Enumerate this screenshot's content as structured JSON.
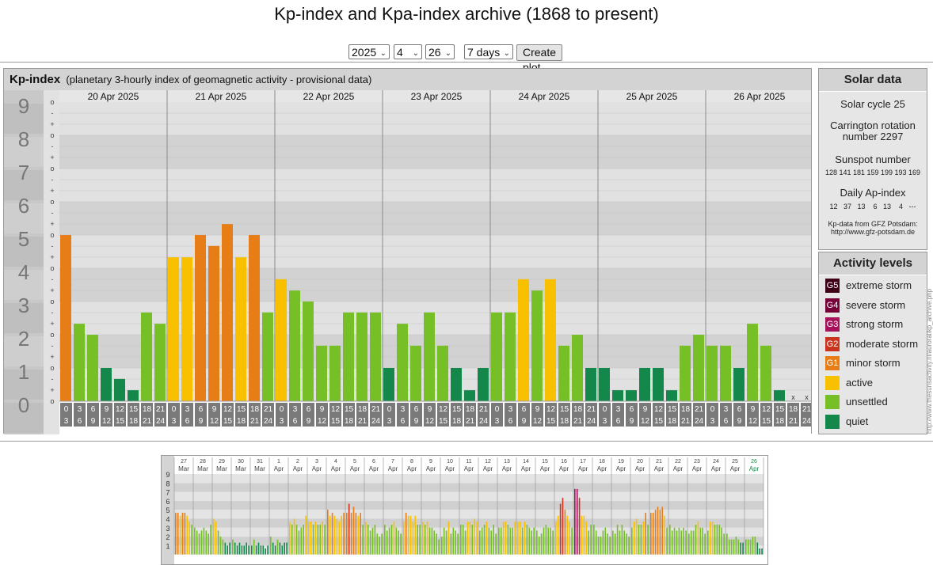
{
  "page": {
    "title": "Kp-index and Kpa-index archive (1868 to present)"
  },
  "controls": {
    "year": "2025",
    "month": "4",
    "day": "26",
    "span": "7 days",
    "button": "Create plot"
  },
  "main_panel": {
    "name": "Kp-index",
    "subtitle": "(planetary 3-hourly index of geomagnetic activity - provisional data)"
  },
  "solar_data": {
    "title": "Solar data",
    "cycle": "Solar cycle 25",
    "carrington_1": "Carrington rotation",
    "carrington_2": "number 2297",
    "sunspot_label": "Sunspot number",
    "sunspots": "128 141 181 159 199 193 169",
    "ap_label": "Daily Ap-index",
    "ap_values": "12   37   13    6   13    4   ---",
    "credit_1": "Kp-data from GFZ Potsdam:",
    "credit_2": "http://www.gfz-potsdam.de"
  },
  "activity_levels": {
    "title": "Activity levels",
    "items": [
      {
        "badge": "G5",
        "label": "extreme storm",
        "color": "#3d0016"
      },
      {
        "badge": "G4",
        "label": "severe storm",
        "color": "#770038"
      },
      {
        "badge": "G3",
        "label": "strong storm",
        "color": "#a5125c"
      },
      {
        "badge": "G2",
        "label": "moderate storm",
        "color": "#c9341f"
      },
      {
        "badge": "G1",
        "label": "minor storm",
        "color": "#e67d17"
      },
      {
        "badge": "",
        "label": "active",
        "color": "#f9c000"
      },
      {
        "badge": "",
        "label": "unsettled",
        "color": "#76bf26"
      },
      {
        "badge": "",
        "label": "quiet",
        "color": "#14884a"
      }
    ]
  },
  "vertical_text": "http://www.thesunsactivity.nl/auroral/kp_archive.php",
  "chart_data": [
    {
      "type": "bar",
      "title": "Kp-index",
      "ylim": [
        0,
        9
      ],
      "y_ticks": [
        "0",
        "1",
        "2",
        "3",
        "4",
        "5",
        "6",
        "7",
        "8",
        "9"
      ],
      "sub_ticks": [
        "o",
        "+",
        "-",
        "o",
        "+",
        "-",
        "o",
        "+",
        "-",
        "o",
        "+",
        "-",
        "o",
        "+",
        "-",
        "o",
        "+",
        "-",
        "o",
        "+",
        "-",
        "o",
        "+",
        "-",
        "o",
        "+",
        "-",
        "o"
      ],
      "days": [
        "20 Apr 2025",
        "21 Apr 2025",
        "22 Apr 2025",
        "23 Apr 2025",
        "24 Apr 2025",
        "25 Apr 2025",
        "26 Apr 2025"
      ],
      "slot_labels": [
        [
          "0",
          "3"
        ],
        [
          "3",
          "6"
        ],
        [
          "6",
          "9"
        ],
        [
          "9",
          "12"
        ],
        [
          "12",
          "15"
        ],
        [
          "15",
          "18"
        ],
        [
          "18",
          "21"
        ],
        [
          "21",
          "24"
        ]
      ],
      "values": [
        [
          5.0,
          2.33,
          2.0,
          1.0,
          0.67,
          0.33,
          2.67,
          2.33
        ],
        [
          4.33,
          4.33,
          5.0,
          4.67,
          5.33,
          4.33,
          5.0,
          2.67
        ],
        [
          3.67,
          3.33,
          3.0,
          1.67,
          1.67,
          2.67,
          2.67,
          2.67
        ],
        [
          1.0,
          2.33,
          1.67,
          2.67,
          1.67,
          1.0,
          0.33,
          1.0
        ],
        [
          2.67,
          2.67,
          3.67,
          3.33,
          3.67,
          1.67,
          2.0,
          1.0
        ],
        [
          1.0,
          0.33,
          0.33,
          1.0,
          1.0,
          0.33,
          1.67,
          2.0
        ],
        [
          1.67,
          1.67,
          1.0,
          2.33,
          1.67,
          0.33,
          null,
          null
        ]
      ],
      "missing_mark": "x",
      "colors": {
        "quiet": "#14884a",
        "unsettled": "#76bf26",
        "active": "#f9c000",
        "G1": "#e67d17",
        "G2": "#c9341f",
        "G3": "#a5125c",
        "G4": "#770038",
        "G5": "#3d0016"
      }
    },
    {
      "type": "bar",
      "title": "Kp overview",
      "ylim": [
        0,
        9
      ],
      "y_ticks": [
        "1",
        "2",
        "3",
        "4",
        "5",
        "6",
        "7",
        "8",
        "9"
      ],
      "days": [
        {
          "d": "27",
          "m": "Mar"
        },
        {
          "d": "28",
          "m": "Mar"
        },
        {
          "d": "29",
          "m": "Mar"
        },
        {
          "d": "30",
          "m": "Mar"
        },
        {
          "d": "31",
          "m": "Mar"
        },
        {
          "d": "1",
          "m": "Apr"
        },
        {
          "d": "2",
          "m": "Apr"
        },
        {
          "d": "3",
          "m": "Apr"
        },
        {
          "d": "4",
          "m": "Apr"
        },
        {
          "d": "5",
          "m": "Apr"
        },
        {
          "d": "6",
          "m": "Apr"
        },
        {
          "d": "7",
          "m": "Apr"
        },
        {
          "d": "8",
          "m": "Apr"
        },
        {
          "d": "9",
          "m": "Apr"
        },
        {
          "d": "10",
          "m": "Apr"
        },
        {
          "d": "11",
          "m": "Apr"
        },
        {
          "d": "12",
          "m": "Apr"
        },
        {
          "d": "13",
          "m": "Apr"
        },
        {
          "d": "14",
          "m": "Apr"
        },
        {
          "d": "15",
          "m": "Apr"
        },
        {
          "d": "16",
          "m": "Apr"
        },
        {
          "d": "17",
          "m": "Apr"
        },
        {
          "d": "18",
          "m": "Apr"
        },
        {
          "d": "19",
          "m": "Apr"
        },
        {
          "d": "20",
          "m": "Apr"
        },
        {
          "d": "21",
          "m": "Apr"
        },
        {
          "d": "22",
          "m": "Apr"
        },
        {
          "d": "23",
          "m": "Apr"
        },
        {
          "d": "24",
          "m": "Apr"
        },
        {
          "d": "25",
          "m": "Apr"
        },
        {
          "d": "26",
          "m": "Apr"
        }
      ],
      "values": [
        [
          4.67,
          4.67,
          4.33,
          4.67,
          4.67,
          4.33,
          3.67,
          3.33
        ],
        [
          3.0,
          2.67,
          2.33,
          2.67,
          3.0,
          2.67,
          2.33,
          3.33
        ],
        [
          4.0,
          3.67,
          2.67,
          2.0,
          1.67,
          1.33,
          1.0,
          1.33
        ],
        [
          1.67,
          1.33,
          1.0,
          1.33,
          1.0,
          1.0,
          1.33,
          1.0
        ],
        [
          1.0,
          1.67,
          1.0,
          1.33,
          1.0,
          1.0,
          0.67,
          1.0
        ],
        [
          2.0,
          1.33,
          1.0,
          1.67,
          1.33,
          1.0,
          1.33,
          1.33
        ],
        [
          3.67,
          3.33,
          4.0,
          3.33,
          2.67,
          3.0,
          3.33,
          4.33
        ],
        [
          3.67,
          3.67,
          3.33,
          3.67,
          3.33,
          3.33,
          3.67,
          3.33
        ],
        [
          5.0,
          4.33,
          4.67,
          4.33,
          4.0,
          3.67,
          4.33,
          4.67
        ],
        [
          4.67,
          5.67,
          4.67,
          5.33,
          4.67,
          4.33,
          4.67,
          3.33
        ],
        [
          3.67,
          3.33,
          2.67,
          3.0,
          3.33,
          2.33,
          2.0,
          2.33
        ],
        [
          3.33,
          2.67,
          3.0,
          3.33,
          3.67,
          3.0,
          2.67,
          2.33
        ],
        [
          3.67,
          4.67,
          4.33,
          4.33,
          3.67,
          4.33,
          3.33,
          3.33
        ],
        [
          3.67,
          3.33,
          3.67,
          3.0,
          3.0,
          2.67,
          2.33,
          1.67
        ],
        [
          2.0,
          3.0,
          2.67,
          3.67,
          2.33,
          3.0,
          2.67,
          2.33
        ],
        [
          3.33,
          3.33,
          2.67,
          3.67,
          3.67,
          3.33,
          4.0,
          3.67
        ],
        [
          2.67,
          3.0,
          3.33,
          3.67,
          3.0,
          2.67,
          3.33,
          2.33
        ],
        [
          3.0,
          3.0,
          3.67,
          3.67,
          3.33,
          3.0,
          3.0,
          3.67
        ],
        [
          3.67,
          3.67,
          3.0,
          3.67,
          3.33,
          3.0,
          2.67,
          3.0
        ],
        [
          2.67,
          2.0,
          2.33,
          3.0,
          3.33,
          3.0,
          3.0,
          2.67
        ],
        [
          3.67,
          4.33,
          5.67,
          6.33,
          5.0,
          4.33,
          3.67,
          3.0
        ],
        [
          7.33,
          7.33,
          6.33,
          4.33,
          4.33,
          3.67,
          2.67,
          3.33
        ],
        [
          3.33,
          2.67,
          2.0,
          2.0,
          2.67,
          3.0,
          2.33,
          2.0
        ],
        [
          2.67,
          2.33,
          3.33,
          2.67,
          3.33,
          2.67,
          2.33,
          2.0
        ],
        [
          3.0,
          3.67,
          4.0,
          3.33,
          3.33,
          3.67,
          4.67,
          3.33
        ],
        [
          4.67,
          4.67,
          5.0,
          5.33,
          5.0,
          5.33,
          4.33,
          3.0
        ],
        [
          3.33,
          2.67,
          3.0,
          2.67,
          3.0,
          2.67,
          3.0,
          2.67
        ],
        [
          2.33,
          2.67,
          2.67,
          3.33,
          3.67,
          3.0,
          3.0,
          2.33
        ],
        [
          2.67,
          3.67,
          3.67,
          3.33,
          3.33,
          3.33,
          3.0,
          2.33
        ],
        [
          2.33,
          1.67,
          1.67,
          1.67,
          2.0,
          1.67,
          1.33,
          1.33
        ],
        [
          1.67,
          1.67,
          1.67,
          2.0,
          2.0,
          1.33,
          0.67,
          0.67
        ]
      ]
    }
  ]
}
